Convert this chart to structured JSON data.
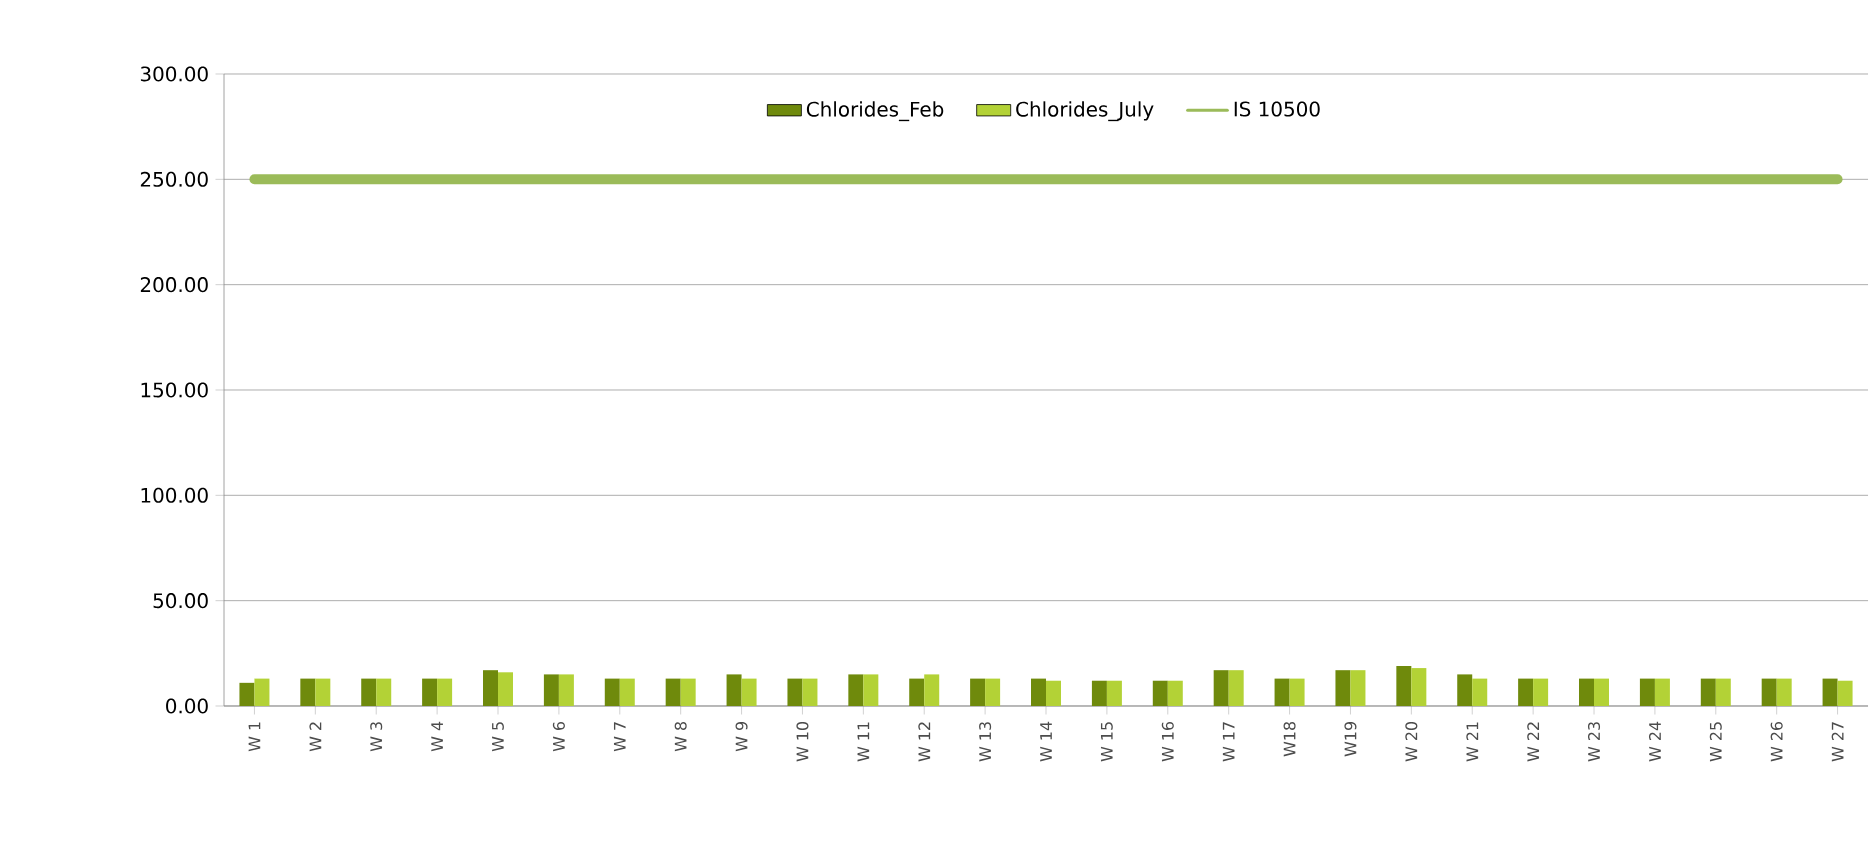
{
  "chart_data": {
    "type": "bar",
    "categories": [
      "W 1",
      "W 2",
      "W 3",
      "W 4",
      "W 5",
      "W 6",
      "W 7",
      "W 8",
      "W 9",
      "W 10",
      "W 11",
      "W 12",
      "W 13",
      "W 14",
      "W 15",
      "W 16",
      "W 17",
      "W18",
      "W19",
      "W 20",
      "W 21",
      "W 22",
      "W 23",
      "W 24",
      "W 25",
      "W 26",
      "W 27"
    ],
    "series": [
      {
        "name": "Chlorides_Feb",
        "color": "#6f8a0c",
        "values": [
          11,
          13,
          13,
          13,
          17,
          15,
          13,
          13,
          15,
          13,
          15,
          13,
          13,
          13,
          12,
          12,
          17,
          13,
          17,
          19,
          15,
          13,
          13,
          13,
          13,
          13,
          13
        ]
      },
      {
        "name": "Chlorides_July",
        "color": "#b3d236",
        "values": [
          13,
          13,
          13,
          13,
          16,
          15,
          13,
          13,
          13,
          13,
          15,
          15,
          13,
          12,
          12,
          12,
          17,
          13,
          17,
          18,
          13,
          13,
          13,
          13,
          13,
          13,
          12
        ]
      },
      {
        "name": "IS 10500",
        "type": "line",
        "color": "#9bbb59",
        "values": [
          250,
          250,
          250,
          250,
          250,
          250,
          250,
          250,
          250,
          250,
          250,
          250,
          250,
          250,
          250,
          250,
          250,
          250,
          250,
          250,
          250,
          250,
          250,
          250,
          250,
          250,
          250
        ]
      }
    ],
    "ylim": [
      0,
      300
    ],
    "yticks": [
      {
        "value": 0,
        "label": "0.00"
      },
      {
        "value": 50,
        "label": "50.00"
      },
      {
        "value": 100,
        "label": "100.00"
      },
      {
        "value": 150,
        "label": "150.00"
      },
      {
        "value": 200,
        "label": "200.00"
      },
      {
        "value": 250,
        "label": "250.00"
      },
      {
        "value": 300,
        "label": "300.00"
      }
    ],
    "grid": "y",
    "legend": "top"
  }
}
